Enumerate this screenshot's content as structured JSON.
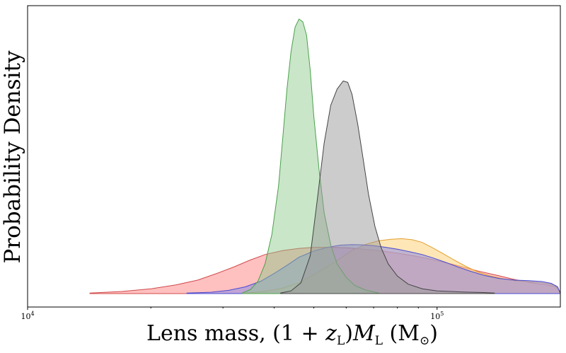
{
  "chart_data": {
    "type": "area",
    "title": "",
    "xlabel": {
      "prefix": "Lens mass, (1 + ",
      "z": "z",
      "z_sub": "L",
      "mid": ")",
      "M": "M",
      "M_sub": "L",
      "unit": " (M",
      "unit_sub": "⊙",
      "close": ")"
    },
    "ylabel": "Probability Density",
    "xscale": "log",
    "xlim": [
      10000,
      200000
    ],
    "ylim": [
      0,
      1.1
    ],
    "xticks": [
      {
        "value": 10000,
        "base": "10",
        "exp": "4"
      },
      {
        "value": 100000,
        "base": "10",
        "exp": "5"
      }
    ],
    "grid": false,
    "legend": "none",
    "series": [
      {
        "color": "#ff8c8c",
        "edge": "#d04a4a",
        "opacity": 0.55,
        "points": [
          [
            14200,
            0.002
          ],
          [
            17000,
            0.008
          ],
          [
            20000,
            0.018
          ],
          [
            23000,
            0.032
          ],
          [
            26000,
            0.05
          ],
          [
            29000,
            0.075
          ],
          [
            32000,
            0.1
          ],
          [
            35000,
            0.125
          ],
          [
            38000,
            0.145
          ],
          [
            42000,
            0.16
          ],
          [
            46000,
            0.168
          ],
          [
            50000,
            0.172
          ],
          [
            55000,
            0.172
          ],
          [
            60000,
            0.17
          ],
          [
            66000,
            0.165
          ],
          [
            72000,
            0.16
          ],
          [
            80000,
            0.15
          ],
          [
            88000,
            0.14
          ],
          [
            96000,
            0.128
          ],
          [
            105000,
            0.115
          ],
          [
            115000,
            0.1
          ],
          [
            125000,
            0.085
          ],
          [
            140000,
            0.068
          ],
          [
            155000,
            0.052
          ],
          [
            170000,
            0.04
          ],
          [
            185000,
            0.032
          ],
          [
            195000,
            0.025
          ],
          [
            200000,
            0.002
          ]
        ]
      },
      {
        "color": "#ffd27a",
        "edge": "#e0a030",
        "opacity": 0.55,
        "points": [
          [
            34000,
            0.002
          ],
          [
            38000,
            0.008
          ],
          [
            42000,
            0.02
          ],
          [
            46000,
            0.04
          ],
          [
            50000,
            0.07
          ],
          [
            54000,
            0.1
          ],
          [
            58000,
            0.13
          ],
          [
            62000,
            0.16
          ],
          [
            67000,
            0.183
          ],
          [
            72000,
            0.196
          ],
          [
            77000,
            0.202
          ],
          [
            82000,
            0.204
          ],
          [
            87000,
            0.2
          ],
          [
            92000,
            0.19
          ],
          [
            97000,
            0.172
          ],
          [
            103000,
            0.15
          ],
          [
            110000,
            0.125
          ],
          [
            118000,
            0.1
          ],
          [
            126000,
            0.08
          ],
          [
            135000,
            0.065
          ],
          [
            145000,
            0.055
          ],
          [
            155000,
            0.048
          ],
          [
            165000,
            0.045
          ],
          [
            175000,
            0.042
          ],
          [
            185000,
            0.038
          ],
          [
            195000,
            0.03
          ],
          [
            200000,
            0.002
          ]
        ]
      },
      {
        "color": "#8c8ce6",
        "edge": "#4a4ad0",
        "opacity": 0.55,
        "points": [
          [
            24500,
            0.002
          ],
          [
            28000,
            0.005
          ],
          [
            31000,
            0.012
          ],
          [
            34000,
            0.025
          ],
          [
            37000,
            0.045
          ],
          [
            40000,
            0.075
          ],
          [
            43000,
            0.105
          ],
          [
            46000,
            0.135
          ],
          [
            50000,
            0.158
          ],
          [
            54000,
            0.172
          ],
          [
            58000,
            0.18
          ],
          [
            62000,
            0.182
          ],
          [
            66000,
            0.181
          ],
          [
            70000,
            0.178
          ],
          [
            75000,
            0.172
          ],
          [
            80000,
            0.165
          ],
          [
            86000,
            0.155
          ],
          [
            92000,
            0.145
          ],
          [
            98000,
            0.132
          ],
          [
            105000,
            0.116
          ],
          [
            112000,
            0.1
          ],
          [
            120000,
            0.084
          ],
          [
            130000,
            0.068
          ],
          [
            142000,
            0.056
          ],
          [
            155000,
            0.05
          ],
          [
            168000,
            0.048
          ],
          [
            180000,
            0.045
          ],
          [
            190000,
            0.038
          ],
          [
            197000,
            0.025
          ],
          [
            200000,
            0.002
          ]
        ]
      },
      {
        "color": "#88c888",
        "edge": "#4aa04a",
        "opacity": 0.45,
        "points": [
          [
            33500,
            0.003
          ],
          [
            35000,
            0.015
          ],
          [
            36500,
            0.045
          ],
          [
            38000,
            0.11
          ],
          [
            39500,
            0.22
          ],
          [
            41000,
            0.4
          ],
          [
            42000,
            0.58
          ],
          [
            43000,
            0.76
          ],
          [
            44000,
            0.9
          ],
          [
            45000,
            0.99
          ],
          [
            46000,
            1.02
          ],
          [
            47000,
            1.01
          ],
          [
            48000,
            0.96
          ],
          [
            49000,
            0.83
          ],
          [
            50000,
            0.66
          ],
          [
            51500,
            0.46
          ],
          [
            53000,
            0.3
          ],
          [
            55000,
            0.18
          ],
          [
            57000,
            0.11
          ],
          [
            60000,
            0.06
          ],
          [
            63000,
            0.03
          ],
          [
            67000,
            0.013
          ],
          [
            72000,
            0.002
          ]
        ]
      },
      {
        "color": "#9a9a9a",
        "edge": "#444444",
        "opacity": 0.5,
        "points": [
          [
            41500,
            0.002
          ],
          [
            44000,
            0.01
          ],
          [
            46500,
            0.04
          ],
          [
            49000,
            0.14
          ],
          [
            51000,
            0.35
          ],
          [
            53000,
            0.56
          ],
          [
            55000,
            0.7
          ],
          [
            57000,
            0.76
          ],
          [
            59000,
            0.79
          ],
          [
            60500,
            0.785
          ],
          [
            62000,
            0.74
          ],
          [
            64000,
            0.63
          ],
          [
            66000,
            0.5
          ],
          [
            68000,
            0.37
          ],
          [
            70500,
            0.25
          ],
          [
            73000,
            0.17
          ],
          [
            76000,
            0.11
          ],
          [
            80000,
            0.065
          ],
          [
            85000,
            0.035
          ],
          [
            92000,
            0.018
          ],
          [
            100000,
            0.01
          ],
          [
            115000,
            0.006
          ],
          [
            130000,
            0.004
          ],
          [
            138000,
            0.002
          ]
        ]
      }
    ]
  }
}
